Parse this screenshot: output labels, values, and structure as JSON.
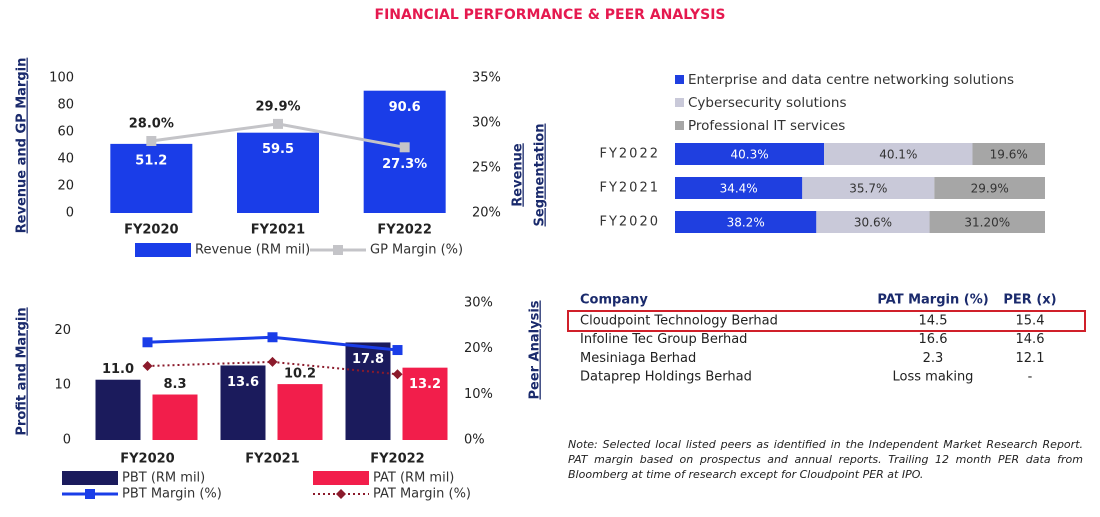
{
  "title": "FINANCIAL PERFORMANCE & PEER ANALYSIS",
  "chart_data": [
    {
      "type": "combo",
      "ylabel": "Revenue and GP Margin",
      "categories": [
        "FY2020",
        "FY2021",
        "FY2022"
      ],
      "series": [
        {
          "name": "Revenue (RM mil)",
          "type": "bar",
          "color": "#1a3de8",
          "values": [
            51.2,
            59.5,
            90.6
          ]
        },
        {
          "name": "GP Margin (%)",
          "type": "line",
          "axis": "y2",
          "color": "#c4c4c8",
          "marker": "square",
          "values": [
            28.0,
            29.9,
            27.3
          ],
          "value_labels": [
            "28.0%",
            "29.9%",
            "27.3%"
          ]
        }
      ],
      "ylim": [
        0,
        100
      ],
      "yticks": [
        0,
        20,
        40,
        60,
        80,
        100
      ],
      "y2lim": [
        20,
        35
      ],
      "y2ticks": [
        {
          "value": 20,
          "label": "20%"
        },
        {
          "value": 25,
          "label": "25%"
        },
        {
          "value": 30,
          "label": "30%"
        },
        {
          "value": 35,
          "label": "35%"
        }
      ]
    },
    {
      "type": "stacked-horizontal-bar",
      "ylabel": [
        "Revenue",
        "Segmentation"
      ],
      "categories": [
        "FY2022",
        "FY2021",
        "FY2020"
      ],
      "series": [
        {
          "name": "Enterprise and data centre networking solutions",
          "color": "#1f3fe0",
          "values": [
            40.3,
            34.4,
            38.2
          ],
          "value_labels": [
            "40.3%",
            "34.4%",
            "38.2%"
          ]
        },
        {
          "name": "Cybersecurity solutions",
          "color": "#c9c9d9",
          "values": [
            40.1,
            35.7,
            30.6
          ],
          "value_labels": [
            "40.1%",
            "35.7%",
            "30.6%"
          ]
        },
        {
          "name": "Professional IT services",
          "color": "#a6a6a6",
          "values": [
            19.6,
            29.9,
            31.2
          ],
          "value_labels": [
            "19.6%",
            "29.9%",
            "31.20%"
          ]
        }
      ],
      "xlim": [
        0,
        100
      ]
    },
    {
      "type": "combo",
      "ylabel": "Profit and Margin",
      "categories": [
        "FY2020",
        "FY2021",
        "FY2022"
      ],
      "series": [
        {
          "name": "PBT (RM mil)",
          "type": "bar",
          "color": "#1b1b5c",
          "values": [
            11.0,
            13.6,
            17.8
          ],
          "value_labels": [
            "11.0",
            "13.6",
            "17.8"
          ]
        },
        {
          "name": "PAT (RM mil)",
          "type": "bar",
          "color": "#f21e4b",
          "values": [
            8.3,
            10.2,
            13.2
          ]
        },
        {
          "name": "PBT Margin (%)",
          "type": "line",
          "axis": "y2",
          "color": "#1a3de8",
          "marker": "square",
          "values": [
            21.4,
            22.5,
            19.7
          ]
        },
        {
          "name": "PAT Margin (%)",
          "type": "line",
          "axis": "y2",
          "color": "#8b1a2b",
          "marker": "diamond",
          "dash": true,
          "values": [
            16.2,
            17.1,
            14.4
          ]
        }
      ],
      "ylim": [
        0,
        25
      ],
      "yticks": [
        0,
        10,
        20
      ],
      "y2lim": [
        0,
        30
      ],
      "y2ticks": [
        {
          "value": 0,
          "label": "0%"
        },
        {
          "value": 10,
          "label": "10%"
        },
        {
          "value": 20,
          "label": "20%"
        },
        {
          "value": 30,
          "label": "30%"
        }
      ]
    }
  ],
  "table": {
    "title": "Peer Analysis",
    "highlight_row": 0,
    "columns": [
      "Company",
      "PAT Margin (%)",
      "PER (x)"
    ],
    "rows": [
      [
        "Cloudpoint Technology Berhad",
        14.5,
        15.4
      ],
      [
        "Infoline Tec Group Berhad",
        16.6,
        14.6
      ],
      [
        "Mesiniaga Berhad",
        2.3,
        12.1
      ],
      [
        "Dataprep Holdings Berhad",
        "Loss making",
        "-"
      ]
    ]
  },
  "note": "Note: Selected local listed peers as identified in the Independent Market Research Report. PAT margin based on prospectus and annual reports. Trailing 12 month PER data from Bloomberg at time of research except for Cloudpoint PER at IPO."
}
